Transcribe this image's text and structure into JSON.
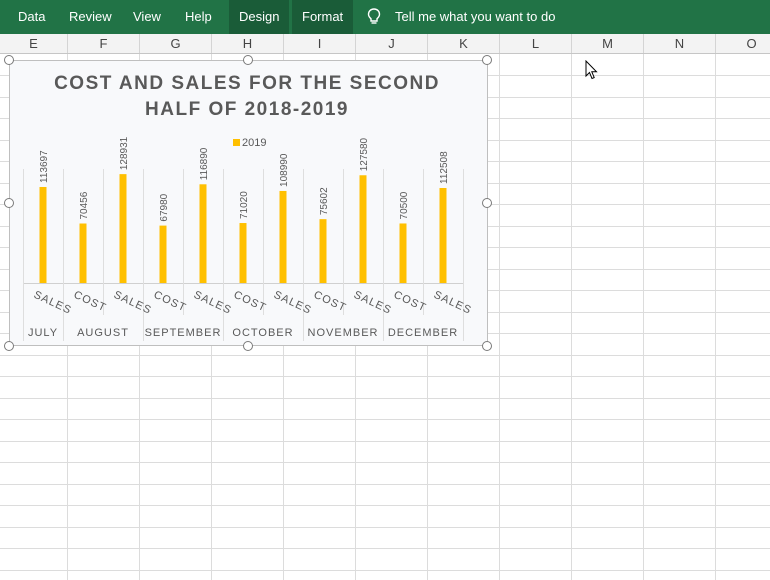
{
  "ribbon": {
    "tabs": [
      {
        "label": "Data",
        "x": 18
      },
      {
        "label": "Review",
        "x": 69
      },
      {
        "label": "View",
        "x": 133
      },
      {
        "label": "Help",
        "x": 185
      },
      {
        "label": "Design",
        "x": 239,
        "contextual": true
      },
      {
        "label": "Format",
        "x": 302,
        "contextual": true
      }
    ],
    "tell_me": "Tell me what you want to do"
  },
  "columns": [
    "E",
    "F",
    "G",
    "H",
    "I",
    "J",
    "K",
    "L",
    "M",
    "N",
    "O"
  ],
  "chart": {
    "title_line1": "COST AND SALES FOR THE SECOND",
    "title_line2": "HALF OF 2018-2019",
    "legend": "2019",
    "bar_color": "#ffc000",
    "months": [
      "JULY",
      "AUGUST",
      "SEPTEMBER",
      "OCTOBER",
      "NOVEMBER",
      "DECEMBER"
    ],
    "categories": [
      "SALES",
      "COST",
      "SALES",
      "COST",
      "SALES",
      "COST",
      "SALES",
      "COST",
      "SALES",
      "COST",
      "SALES"
    ],
    "values": [
      113697,
      70456,
      128931,
      67980,
      116890,
      71020,
      108990,
      75602,
      127580,
      70500,
      112508
    ],
    "data_labels": [
      "113697",
      "70456",
      "128931",
      "67980",
      "116890",
      "71020",
      "108990",
      "75602",
      "127580",
      "70500",
      "112508"
    ]
  },
  "chart_data": {
    "type": "bar",
    "title": "COST AND SALES FOR THE SECOND HALF OF 2018-2019",
    "categories": [
      "SALES",
      "COST",
      "SALES",
      "COST",
      "SALES",
      "COST",
      "SALES",
      "COST",
      "SALES",
      "COST",
      "SALES"
    ],
    "group_labels": [
      "JULY",
      "AUGUST",
      "SEPTEMBER",
      "OCTOBER",
      "NOVEMBER",
      "DECEMBER"
    ],
    "series": [
      {
        "name": "2019",
        "values": [
          113697,
          70456,
          128931,
          67980,
          116890,
          71020,
          108990,
          75602,
          127580,
          70500,
          112508
        ]
      }
    ],
    "legend_position": "top",
    "grid": false
  }
}
